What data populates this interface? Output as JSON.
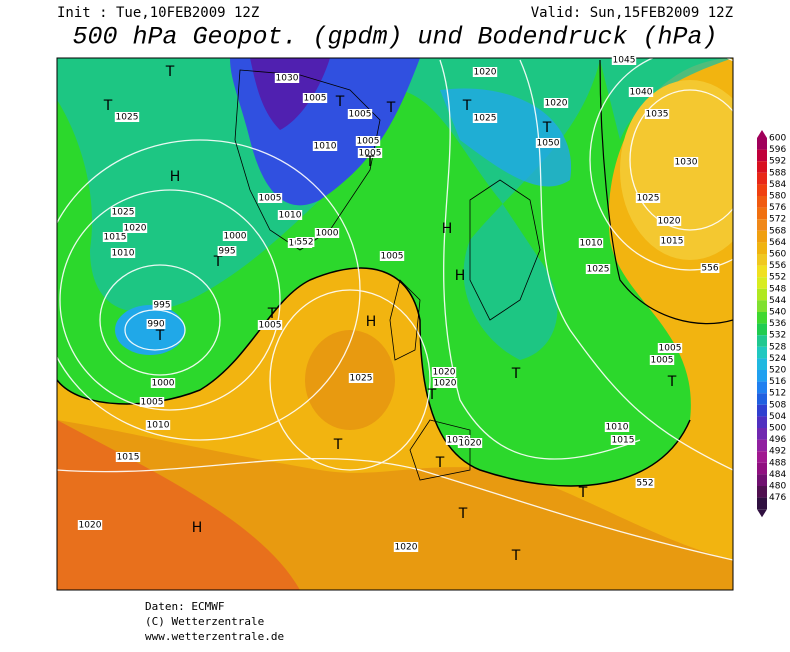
{
  "header": {
    "init": "Init : Tue,10FEB2009 12Z",
    "valid": "Valid: Sun,15FEB2009 12Z",
    "title": "500 hPa Geopot. (gpdm) und Bodendruck (hPa)"
  },
  "colorbar": {
    "levels": [
      600,
      596,
      592,
      588,
      584,
      580,
      576,
      572,
      568,
      564,
      560,
      556,
      552,
      548,
      544,
      540,
      536,
      532,
      528,
      524,
      520,
      516,
      512,
      508,
      504,
      500,
      496,
      492,
      488,
      484,
      480,
      476
    ]
  },
  "map_labels": [
    "T",
    "T",
    "H",
    "1025",
    "1025",
    "1020",
    "1015",
    "1010",
    "T",
    "995",
    "1000",
    "995",
    "990",
    "T",
    "1000",
    "1005",
    "1010",
    "1015",
    "1020",
    "H",
    "1030",
    "1005",
    "T",
    "1005",
    "T",
    "1005",
    "1010",
    "1005",
    "T",
    "1005",
    "1010",
    "1000",
    "1000",
    "552",
    "1005",
    "T",
    "1005",
    "H",
    "1025",
    "T",
    "1020",
    "1020",
    "T",
    "1020",
    "1020",
    "T",
    "T",
    "1020",
    "T",
    "1020",
    "T",
    "1025",
    "1020",
    "T",
    "1050",
    "1045",
    "1040",
    "1035",
    "1030",
    "1025",
    "1020",
    "1015",
    "1010",
    "1025",
    "H",
    "H",
    "T",
    "1005",
    "1005",
    "T",
    "1010",
    "1015",
    "552",
    "T",
    "556"
  ],
  "footer": [
    "Daten: ECMWF",
    "(C) Wetterzentrale",
    "www.wetterzentrale.de"
  ]
}
